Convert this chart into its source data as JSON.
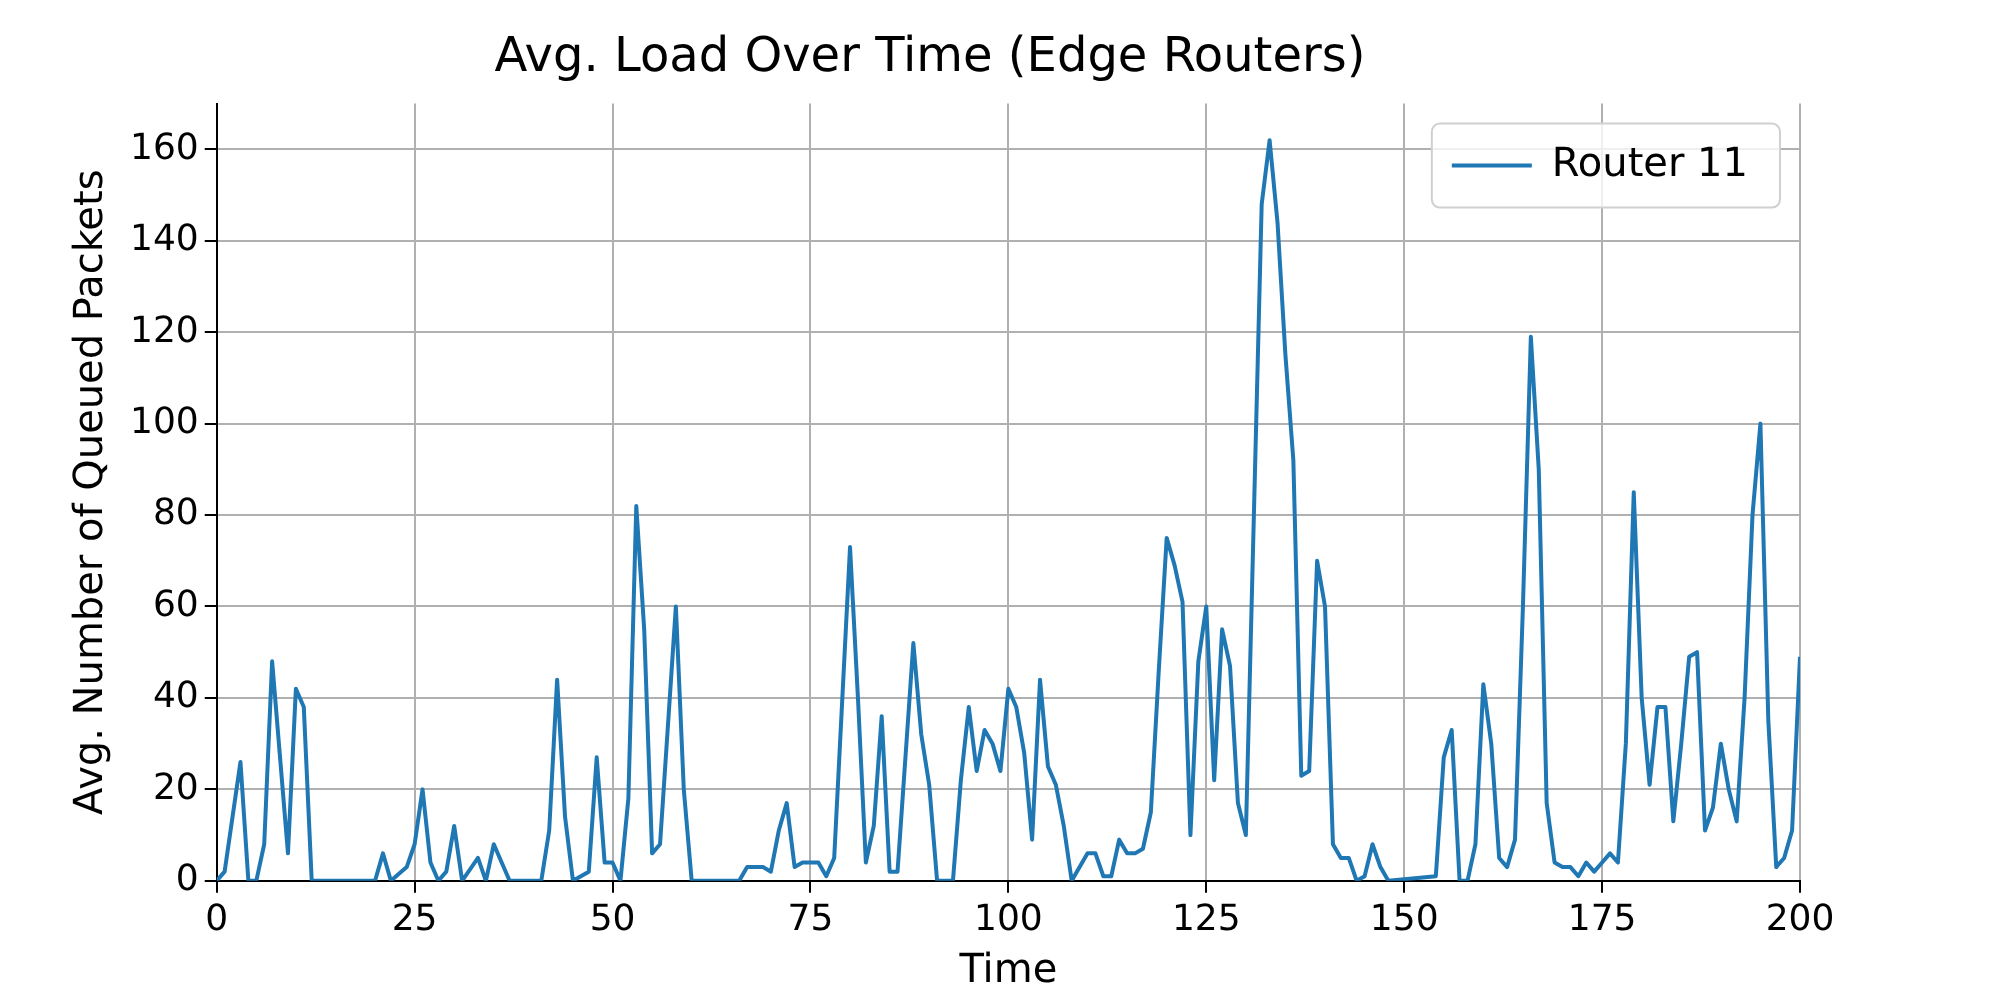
{
  "chart_data": {
    "type": "line",
    "title": "Avg. Load Over Time (Edge Routers)",
    "xlabel": "Time",
    "ylabel": "Avg. Number of Queued Packets",
    "xlim": [
      0,
      200
    ],
    "xticks": [
      0,
      25,
      50,
      75,
      100,
      125,
      150,
      175,
      200
    ],
    "ylim": [
      0,
      170
    ],
    "yticks": [
      0,
      20,
      40,
      60,
      80,
      100,
      120,
      140,
      160
    ],
    "grid": true,
    "legend": "top right",
    "marker": "none",
    "line_style": "solid",
    "series": [
      {
        "name": "Router 11",
        "color": "#1f77b4",
        "x": [
          0,
          1,
          3,
          4,
          5,
          6,
          7,
          9,
          10,
          11,
          12,
          20,
          21,
          22,
          24,
          25,
          26,
          27,
          28,
          29,
          30,
          31,
          33,
          34,
          35,
          37,
          41,
          42,
          43,
          44,
          45,
          47,
          48,
          49,
          50,
          51,
          52,
          53,
          54,
          55,
          56,
          58,
          59,
          60,
          66,
          67,
          69,
          70,
          71,
          72,
          73,
          74,
          76,
          77,
          78,
          80,
          81,
          82,
          83,
          84,
          85,
          86,
          88,
          89,
          90,
          91,
          93,
          94,
          95,
          96,
          97,
          98,
          99,
          100,
          101,
          102,
          103,
          104,
          105,
          106,
          107,
          108,
          109,
          110,
          111,
          112,
          113,
          114,
          115,
          116,
          117,
          118,
          119,
          120,
          121,
          122,
          123,
          124,
          125,
          126,
          127,
          128,
          129,
          130,
          132,
          133,
          134,
          135,
          136,
          137,
          138,
          139,
          140,
          141,
          142,
          143,
          144,
          145,
          146,
          147,
          148,
          154,
          155,
          156,
          157,
          158,
          159,
          160,
          161,
          162,
          163,
          164,
          165,
          166,
          167,
          168,
          169,
          170,
          171,
          172,
          173,
          174,
          175,
          176,
          177,
          178,
          179,
          180,
          181,
          182,
          183,
          184,
          185,
          186,
          187,
          188,
          189,
          190,
          191,
          192,
          193,
          194,
          195,
          196,
          197,
          198,
          199,
          200
        ],
        "values": [
          0,
          2,
          26,
          0,
          0,
          8,
          48,
          6,
          42,
          38,
          0,
          0,
          6,
          0,
          3,
          8,
          20,
          4,
          0,
          2,
          12,
          0,
          5,
          0,
          8,
          0,
          0,
          11,
          44,
          14,
          0,
          2,
          27,
          4,
          4,
          0,
          18,
          82,
          55,
          6,
          8,
          60,
          20,
          0,
          0,
          3,
          3,
          2,
          11,
          17,
          3,
          4,
          4,
          1,
          5,
          73,
          40,
          4,
          12,
          36,
          2,
          2,
          52,
          32,
          21,
          0,
          0,
          22,
          38,
          24,
          33,
          30,
          24,
          42,
          38,
          28,
          9,
          44,
          25,
          21,
          12,
          0,
          3,
          6,
          6,
          1,
          1,
          9,
          6,
          6,
          7,
          15,
          46,
          75,
          69,
          61,
          10,
          48,
          60,
          22,
          55,
          47,
          17,
          10,
          148,
          162,
          144,
          115,
          92,
          23,
          24,
          70,
          60,
          8,
          5,
          5,
          0,
          1,
          8,
          3,
          0,
          1,
          27,
          33,
          0,
          0,
          8,
          43,
          30,
          5,
          3,
          9,
          60,
          119,
          90,
          17,
          4,
          3,
          3,
          1,
          4,
          2,
          4,
          6,
          4,
          30,
          85,
          40,
          21,
          38,
          38,
          13,
          30,
          49,
          50,
          11,
          16,
          30,
          20,
          13,
          40,
          80,
          100,
          35,
          3,
          5,
          11,
          49
        ]
      }
    ]
  }
}
